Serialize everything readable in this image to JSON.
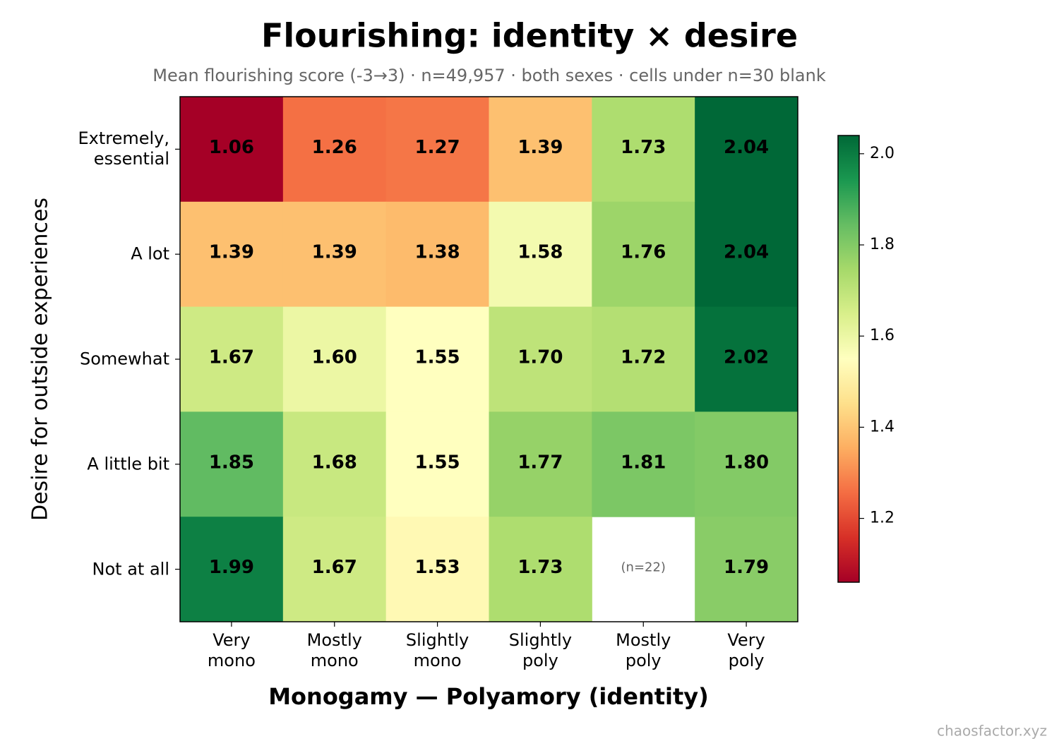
{
  "chart_data": {
    "type": "heatmap",
    "title": "Flourishing: identity × desire",
    "subtitle": "Mean flourishing score (-3→3) · n=49,957 · both sexes · cells under n=30 blank",
    "x_label": "Monogamy — Polyamory (identity)",
    "y_label": "Desire for outside experiences",
    "categories": [
      "Very\nmono",
      "Mostly\nmono",
      "Slightly\nmono",
      "Slightly\npoly",
      "Mostly\npoly",
      "Very\npoly"
    ],
    "rows": [
      "Extremely,\nessential",
      "A lot",
      "Somewhat",
      "A little bit",
      "Not at all"
    ],
    "values": [
      [
        1.06,
        1.26,
        1.27,
        1.39,
        1.73,
        2.04
      ],
      [
        1.39,
        1.39,
        1.38,
        1.58,
        1.76,
        2.04
      ],
      [
        1.67,
        1.6,
        1.55,
        1.7,
        1.72,
        2.02
      ],
      [
        1.85,
        1.68,
        1.55,
        1.77,
        1.81,
        1.8
      ],
      [
        1.99,
        1.67,
        1.53,
        1.73,
        null,
        1.79
      ]
    ],
    "value_labels": [
      [
        "1.06",
        "1.26",
        "1.27",
        "1.39",
        "1.73",
        "2.04"
      ],
      [
        "1.39",
        "1.39",
        "1.38",
        "1.58",
        "1.76",
        "2.04"
      ],
      [
        "1.67",
        "1.60",
        "1.55",
        "1.70",
        "1.72",
        "2.02"
      ],
      [
        "1.85",
        "1.68",
        "1.55",
        "1.77",
        "1.81",
        "1.80"
      ],
      [
        "1.99",
        "1.67",
        "1.53",
        "1.73",
        "(n=22)",
        "1.79"
      ]
    ],
    "colormap": "RdYlGn",
    "clim": [
      1.06,
      2.04
    ],
    "cticks": [
      1.2,
      1.4,
      1.6,
      1.8,
      {
        "value": 2,
        "label": "2.0"
      }
    ],
    "grid": false,
    "watermark": "chaosfactor.xyz"
  }
}
